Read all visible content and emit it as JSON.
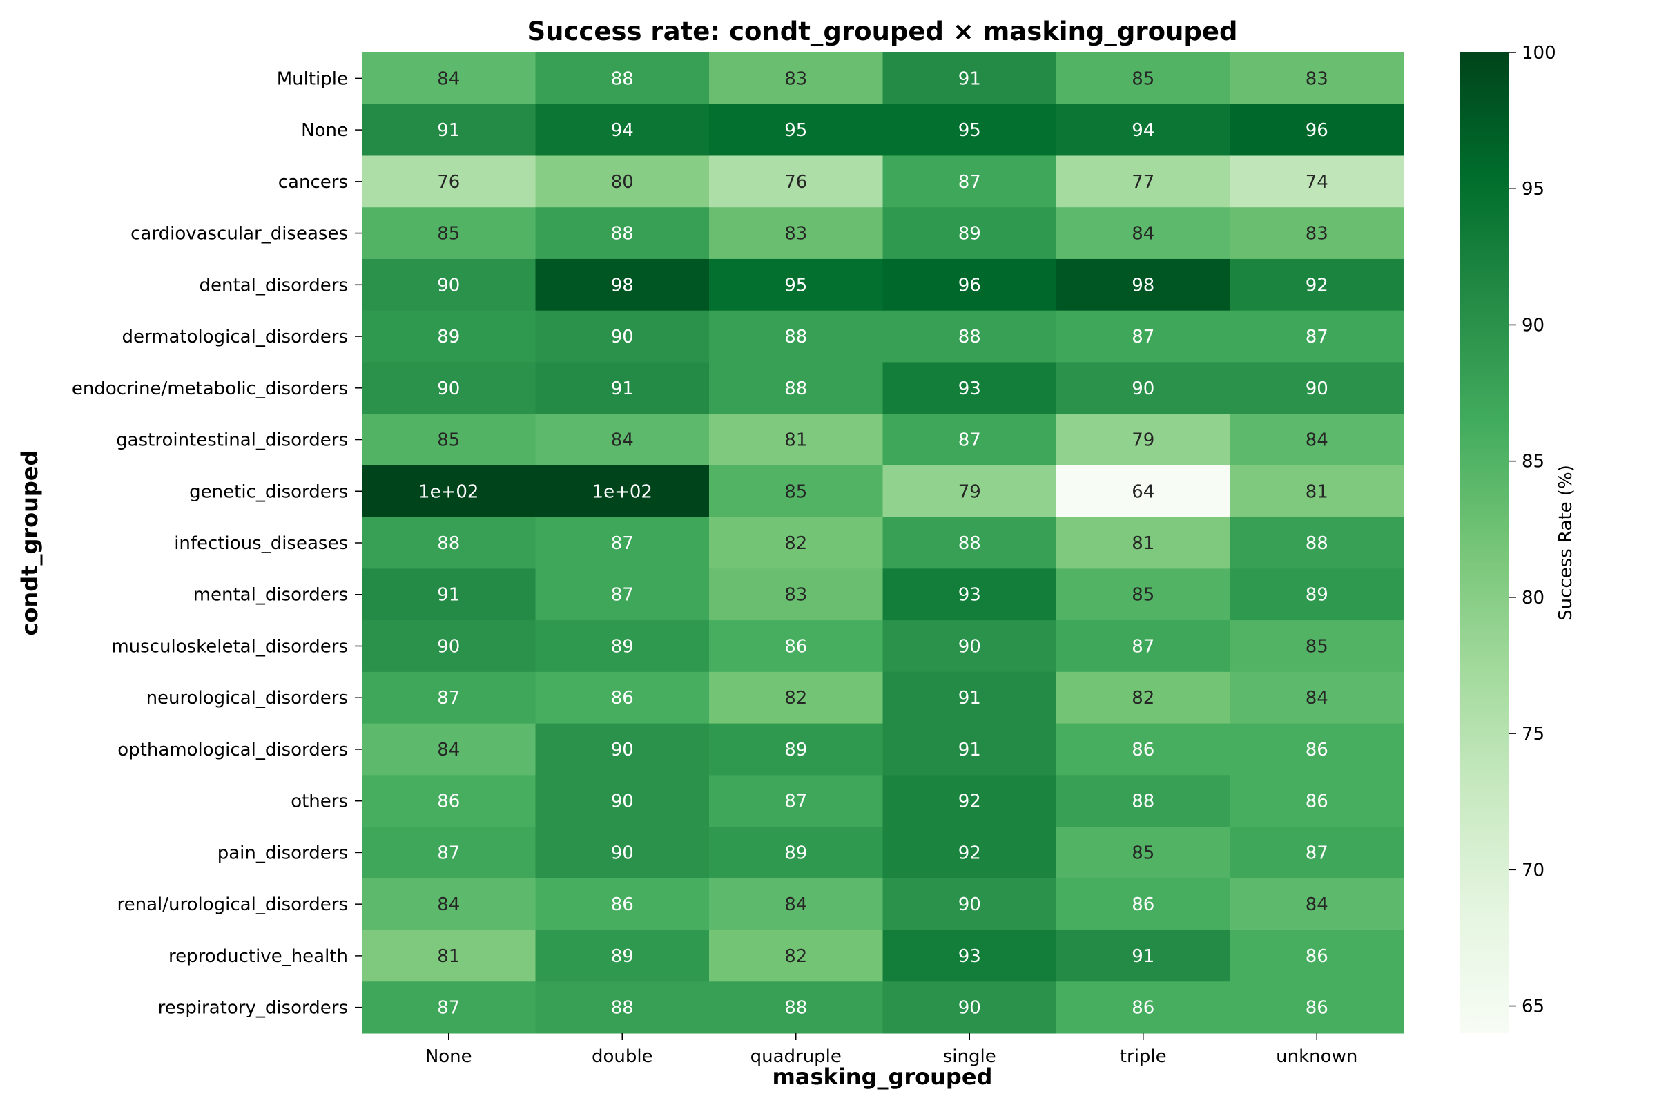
{
  "chart_data": {
    "type": "heatmap",
    "title": "Success rate: condt_grouped × masking_grouped",
    "xlabel": "masking_grouped",
    "ylabel": "condt_grouped",
    "x_categories": [
      "None",
      "double",
      "quadruple",
      "single",
      "triple",
      "unknown"
    ],
    "y_categories": [
      "Multiple",
      "None",
      "cancers",
      "cardiovascular_diseases",
      "dental_disorders",
      "dermatological_disorders",
      "endocrine/metabolic_disorders",
      "gastrointestinal_disorders",
      "genetic_disorders",
      "infectious_diseases",
      "mental_disorders",
      "musculoskeletal_disorders",
      "neurological_disorders",
      "opthamological_disorders",
      "others",
      "pain_disorders",
      "renal/urological_disorders",
      "reproductive_health",
      "respiratory_disorders"
    ],
    "values": [
      [
        84,
        88,
        83,
        91,
        85,
        83
      ],
      [
        91,
        94,
        95,
        95,
        94,
        96
      ],
      [
        76,
        80,
        76,
        87,
        77,
        74
      ],
      [
        85,
        88,
        83,
        89,
        84,
        83
      ],
      [
        90,
        98,
        95,
        96,
        98,
        92
      ],
      [
        89,
        90,
        88,
        88,
        87,
        87
      ],
      [
        90,
        91,
        88,
        93,
        90,
        90
      ],
      [
        85,
        84,
        81,
        87,
        79,
        84
      ],
      [
        100,
        100,
        85,
        79,
        64,
        81
      ],
      [
        88,
        87,
        82,
        88,
        81,
        88
      ],
      [
        91,
        87,
        83,
        93,
        85,
        89
      ],
      [
        90,
        89,
        86,
        90,
        87,
        85
      ],
      [
        87,
        86,
        82,
        91,
        82,
        84
      ],
      [
        84,
        90,
        89,
        91,
        86,
        86
      ],
      [
        86,
        90,
        87,
        92,
        88,
        86
      ],
      [
        87,
        90,
        89,
        92,
        85,
        87
      ],
      [
        84,
        86,
        84,
        90,
        86,
        84
      ],
      [
        81,
        89,
        82,
        93,
        91,
        86
      ],
      [
        87,
        88,
        88,
        90,
        86,
        86
      ]
    ],
    "cell_labels": [
      [
        "84",
        "88",
        "83",
        "91",
        "85",
        "83"
      ],
      [
        "91",
        "94",
        "95",
        "95",
        "94",
        "96"
      ],
      [
        "76",
        "80",
        "76",
        "87",
        "77",
        "74"
      ],
      [
        "85",
        "88",
        "83",
        "89",
        "84",
        "83"
      ],
      [
        "90",
        "98",
        "95",
        "96",
        "98",
        "92"
      ],
      [
        "89",
        "90",
        "88",
        "88",
        "87",
        "87"
      ],
      [
        "90",
        "91",
        "88",
        "93",
        "90",
        "90"
      ],
      [
        "85",
        "84",
        "81",
        "87",
        "79",
        "84"
      ],
      [
        "1e+02",
        "1e+02",
        "85",
        "79",
        "64",
        "81"
      ],
      [
        "88",
        "87",
        "82",
        "88",
        "81",
        "88"
      ],
      [
        "91",
        "87",
        "83",
        "93",
        "85",
        "89"
      ],
      [
        "90",
        "89",
        "86",
        "90",
        "87",
        "85"
      ],
      [
        "87",
        "86",
        "82",
        "91",
        "82",
        "84"
      ],
      [
        "84",
        "90",
        "89",
        "91",
        "86",
        "86"
      ],
      [
        "86",
        "90",
        "87",
        "92",
        "88",
        "86"
      ],
      [
        "87",
        "90",
        "89",
        "92",
        "85",
        "87"
      ],
      [
        "84",
        "86",
        "84",
        "90",
        "86",
        "84"
      ],
      [
        "81",
        "89",
        "82",
        "93",
        "91",
        "86"
      ],
      [
        "87",
        "88",
        "88",
        "90",
        "86",
        "86"
      ]
    ],
    "colorbar": {
      "label": "Success Rate (%)",
      "range": [
        64,
        100
      ],
      "ticks": [
        65,
        70,
        75,
        80,
        85,
        90,
        95,
        100
      ],
      "colormap": "Greens",
      "colors": [
        "#f7fcf5",
        "#e5f5e0",
        "#c7e9c0",
        "#a1d99b",
        "#74c476",
        "#41ab5d",
        "#238b45",
        "#006d2c",
        "#00441b"
      ]
    },
    "grid": false
  }
}
